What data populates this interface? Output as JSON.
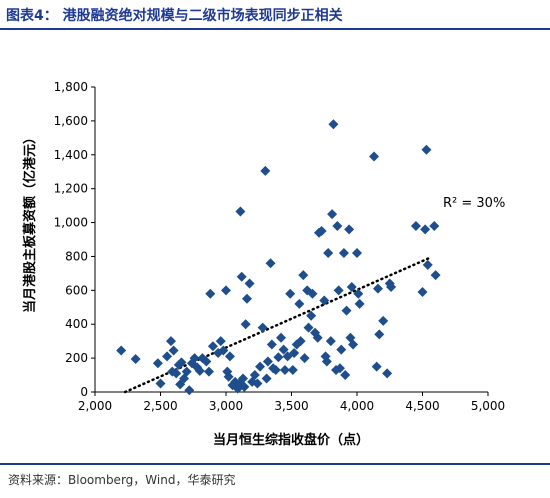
{
  "figure": {
    "title": "图表4：  港股融资绝对规模与二级市场表现同步正相关",
    "source": "资料来源：Bloomberg，Wind，华泰研究"
  },
  "colors": {
    "accent": "#1f3a93",
    "marker": "#1f4e8c"
  },
  "chart_data": {
    "type": "scatter",
    "title": "",
    "xlabel": "当月恒生综指收盘价（点）",
    "ylabel": "当月港股主板募资额（亿港元）",
    "xlim": [
      2000,
      5000
    ],
    "ylim": [
      0,
      1800
    ],
    "xticks": [
      2000,
      2500,
      3000,
      3500,
      4000,
      4500,
      5000
    ],
    "yticks": [
      0,
      200,
      400,
      600,
      800,
      1000,
      1200,
      1400,
      1600,
      1800
    ],
    "xtick_labels": [
      "2,000",
      "2,500",
      "3,000",
      "3,500",
      "4,000",
      "4,500",
      "5,000"
    ],
    "ytick_labels": [
      "0",
      "200",
      "400",
      "600",
      "800",
      "1,000",
      "1,200",
      "1,400",
      "1,600",
      "1,800"
    ],
    "annotation": "R² = 30%",
    "grid": false,
    "trendline": {
      "style": "dotted",
      "x": [
        2230,
        4550
      ],
      "y": [
        0,
        790
      ]
    },
    "points": [
      [
        2200,
        245
      ],
      [
        2310,
        195
      ],
      [
        2480,
        170
      ],
      [
        2500,
        50
      ],
      [
        2550,
        210
      ],
      [
        2580,
        300
      ],
      [
        2590,
        120
      ],
      [
        2600,
        245
      ],
      [
        2620,
        110
      ],
      [
        2640,
        160
      ],
      [
        2650,
        45
      ],
      [
        2660,
        175
      ],
      [
        2680,
        80
      ],
      [
        2700,
        120
      ],
      [
        2720,
        10
      ],
      [
        2740,
        170
      ],
      [
        2760,
        200
      ],
      [
        2780,
        145
      ],
      [
        2800,
        125
      ],
      [
        2820,
        200
      ],
      [
        2850,
        180
      ],
      [
        2870,
        120
      ],
      [
        2880,
        580
      ],
      [
        2900,
        270
      ],
      [
        2940,
        230
      ],
      [
        2960,
        300
      ],
      [
        2980,
        245
      ],
      [
        3000,
        600
      ],
      [
        3010,
        120
      ],
      [
        3020,
        90
      ],
      [
        3030,
        210
      ],
      [
        3050,
        40
      ],
      [
        3070,
        60
      ],
      [
        3090,
        20
      ],
      [
        3100,
        50
      ],
      [
        3110,
        1065
      ],
      [
        3120,
        680
      ],
      [
        3130,
        80
      ],
      [
        3140,
        30
      ],
      [
        3150,
        400
      ],
      [
        3160,
        550
      ],
      [
        3180,
        640
      ],
      [
        3200,
        60
      ],
      [
        3220,
        100
      ],
      [
        3240,
        50
      ],
      [
        3260,
        150
      ],
      [
        3280,
        380
      ],
      [
        3300,
        1305
      ],
      [
        3310,
        80
      ],
      [
        3320,
        180
      ],
      [
        3340,
        760
      ],
      [
        3350,
        280
      ],
      [
        3360,
        140
      ],
      [
        3380,
        130
      ],
      [
        3400,
        205
      ],
      [
        3420,
        320
      ],
      [
        3440,
        250
      ],
      [
        3450,
        130
      ],
      [
        3470,
        210
      ],
      [
        3490,
        580
      ],
      [
        3510,
        130
      ],
      [
        3520,
        230
      ],
      [
        3540,
        280
      ],
      [
        3560,
        520
      ],
      [
        3570,
        300
      ],
      [
        3590,
        690
      ],
      [
        3600,
        200
      ],
      [
        3620,
        600
      ],
      [
        3630,
        380
      ],
      [
        3650,
        450
      ],
      [
        3660,
        580
      ],
      [
        3680,
        350
      ],
      [
        3700,
        320
      ],
      [
        3710,
        940
      ],
      [
        3730,
        950
      ],
      [
        3750,
        540
      ],
      [
        3760,
        210
      ],
      [
        3770,
        180
      ],
      [
        3780,
        820
      ],
      [
        3800,
        300
      ],
      [
        3810,
        1050
      ],
      [
        3820,
        1580
      ],
      [
        3840,
        130
      ],
      [
        3850,
        980
      ],
      [
        3860,
        600
      ],
      [
        3870,
        140
      ],
      [
        3880,
        250
      ],
      [
        3900,
        820
      ],
      [
        3910,
        100
      ],
      [
        3920,
        480
      ],
      [
        3940,
        960
      ],
      [
        3950,
        320
      ],
      [
        3960,
        620
      ],
      [
        3970,
        280
      ],
      [
        4000,
        820
      ],
      [
        4010,
        580
      ],
      [
        4020,
        520
      ],
      [
        4130,
        1390
      ],
      [
        4150,
        150
      ],
      [
        4160,
        610
      ],
      [
        4170,
        340
      ],
      [
        4200,
        420
      ],
      [
        4230,
        110
      ],
      [
        4250,
        640
      ],
      [
        4260,
        620
      ],
      [
        4450,
        980
      ],
      [
        4500,
        590
      ],
      [
        4520,
        960
      ],
      [
        4530,
        1430
      ],
      [
        4540,
        750
      ],
      [
        4590,
        980
      ],
      [
        4600,
        690
      ]
    ]
  }
}
